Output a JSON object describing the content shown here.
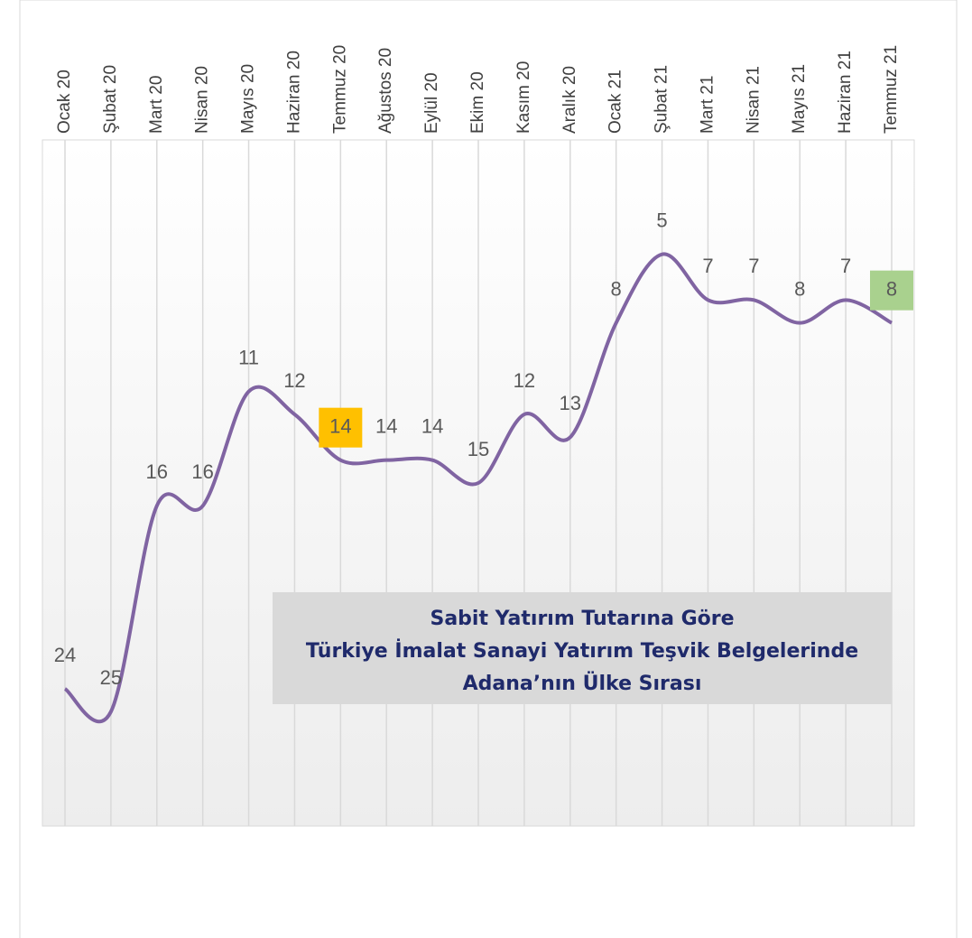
{
  "chart_data": {
    "type": "line",
    "title": [
      "Sabit Yatırım Tutarına Göre",
      "Türkiye İmalat Sanayi Yatırım Teşvik Belgelerinde",
      "Adana’nın Ülke Sırası"
    ],
    "categories": [
      "Ocak 20",
      "Şubat 20",
      "Mart 20",
      "Nisan 20",
      "Mayıs 20",
      "Haziran 20",
      "Temmuz 20",
      "Ağustos 20",
      "Eylül 20",
      "Ekim 20",
      "Kasım 20",
      "Aralık 20",
      "Ocak 21",
      "Şubat 21",
      "Mart 21",
      "Nisan 21",
      "Mayıs 21",
      "Haziran 21",
      "Temmuz 21"
    ],
    "values": [
      24,
      25,
      16,
      16,
      11,
      12,
      14,
      14,
      14,
      15,
      12,
      13,
      8,
      5,
      7,
      7,
      8,
      7,
      8
    ],
    "color": "#8064a2",
    "ylim": [
      0,
      30
    ],
    "inverted": true,
    "smooth": true,
    "grid": true,
    "label_highlights": [
      {
        "index": 6,
        "color": "#ffc000"
      },
      {
        "index": 18,
        "color": "#a9d18e"
      }
    ]
  }
}
